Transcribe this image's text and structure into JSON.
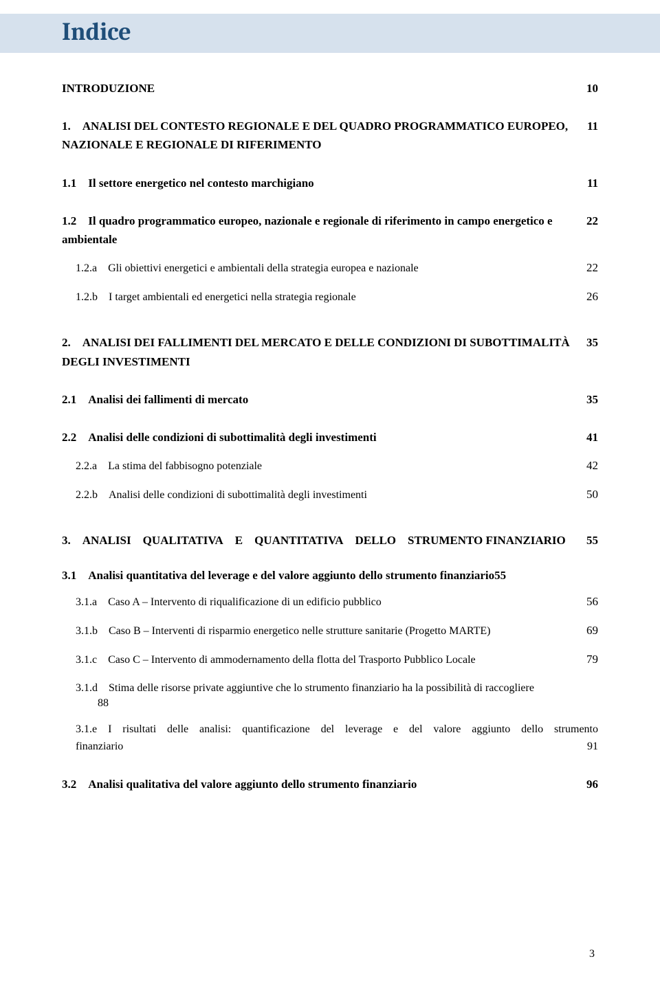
{
  "title": "Indice",
  "entries": [
    {
      "label": "INTRODUZIONE",
      "page": "10",
      "bold": true,
      "spaced": false
    },
    {
      "label": "1. ANALISI DEL CONTESTO REGIONALE E DEL QUADRO PROGRAMMATICO EUROPEO, NAZIONALE E REGIONALE DI RIFERIMENTO",
      "page": "11",
      "bold": true,
      "spaced": true
    },
    {
      "label": "1.1 Il settore energetico nel contesto marchigiano",
      "page": "11",
      "bold": true,
      "spaced": true
    },
    {
      "label": "1.2 Il quadro programmatico europeo, nazionale e regionale di riferimento in campo energetico e ambientale",
      "page": "22",
      "bold": true,
      "spaced": true
    },
    {
      "label": "1.2.a Gli obiettivi energetici e ambientali della strategia europea e nazionale",
      "page": "22",
      "bold": false,
      "sub": 2,
      "spaced": false,
      "subspaced": true
    },
    {
      "label": "1.2.b I target ambientali ed energetici nella strategia regionale",
      "page": "26",
      "bold": false,
      "sub": 2,
      "spaced": false,
      "subspaced": true
    },
    {
      "label": "2. ANALISI DEI FALLIMENTI DEL MERCATO E DELLE CONDIZIONI DI SUBOTTIMALITÀ DEGLI  INVESTIMENTI",
      "page": "35",
      "bold": true,
      "spaced": true,
      "bigspace": true
    },
    {
      "label": "2.1 Analisi dei fallimenti di mercato",
      "page": "35",
      "bold": true,
      "spaced": true
    },
    {
      "label": "2.2 Analisi delle condizioni di subottimalità degli investimenti",
      "page": "41",
      "bold": true,
      "spaced": true
    },
    {
      "label": "2.2.a La stima del fabbisogno potenziale",
      "page": "42",
      "bold": false,
      "sub": 2,
      "subspaced": true
    },
    {
      "label": "2.2.b Analisi delle condizioni di subottimalità degli investimenti",
      "page": "50",
      "bold": false,
      "sub": 2,
      "subspaced": true
    },
    {
      "label": "3. ANALISI QUALITATIVA E QUANTITATIVA DELLO STRUMENTO FINANZIARIO",
      "page": "55",
      "bold": true,
      "spaced": true,
      "bigspace": true
    },
    {
      "label": "3.1 Analisi quantitativa del leverage e del valore aggiunto dello strumento finanziario",
      "page": "55",
      "bold": true,
      "spaced": true,
      "inline": true
    },
    {
      "label": "3.1.a Caso A – Intervento di riqualificazione di un edificio pubblico",
      "page": "56",
      "bold": false,
      "sub": 2,
      "subspaced": true
    },
    {
      "label": "3.1.b Caso B – Interventi di risparmio energetico nelle strutture sanitarie (Progetto MARTE)",
      "page": "69",
      "bold": false,
      "sub": 2,
      "subspaced": true
    },
    {
      "label": "3.1.c Caso C – Intervento di ammodernamento della flotta del Trasporto Pubblico Locale",
      "page": "79",
      "bold": false,
      "sub": 2,
      "subspaced": true
    },
    {
      "label": "3.1.d Stima delle risorse private aggiuntive che lo strumento finanziario ha la possibilità di raccogliere",
      "page": "",
      "bold": false,
      "sub": 2,
      "subspaced": true,
      "wrapnum": "88"
    },
    {
      "label": "3.1.e I risultati delle analisi: quantificazione del leverage e del valore aggiunto dello strumento finanziario",
      "page": "91",
      "bold": false,
      "sub": 2,
      "subspaced": true,
      "justify": true
    },
    {
      "label": "3.2 Analisi qualitativa del valore aggiunto dello strumento finanziario",
      "page": "96",
      "bold": true,
      "spaced": true
    }
  ],
  "pageNumber": "3",
  "colors": {
    "titleBg": "#d6e1ed",
    "titleFg": "#1f4e79",
    "text": "#000000",
    "bg": "#ffffff"
  },
  "fonts": {
    "title": "Cambria, Georgia, serif",
    "body": "Georgia, 'Times New Roman', serif",
    "titleSize": 36,
    "bodySize": 17
  }
}
